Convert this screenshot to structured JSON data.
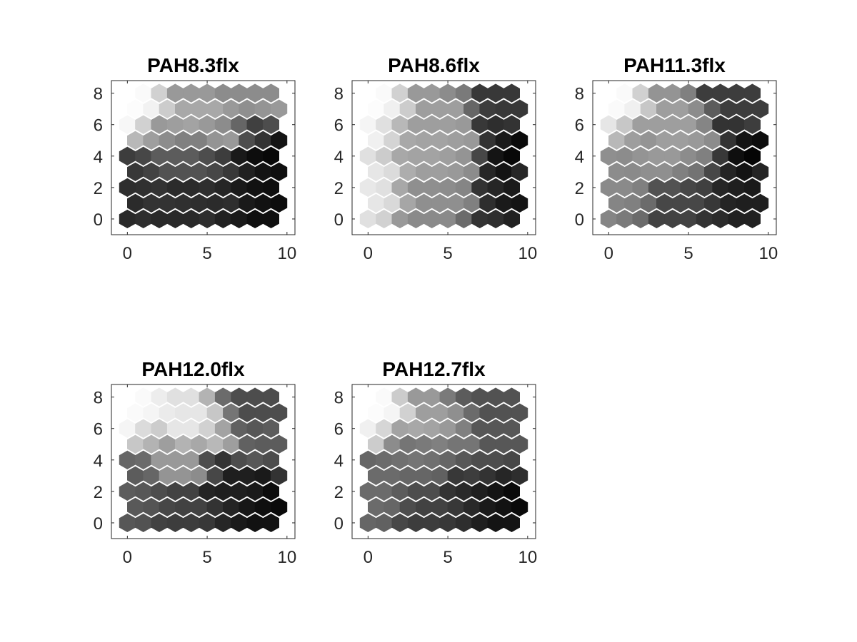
{
  "figure": {
    "background": "#ffffff",
    "axis_color": "#262626"
  },
  "chart_data": [
    {
      "type": "heatmap",
      "subtype": "hexagonal",
      "title": "PAH8.3flx",
      "xlim": [
        -1,
        10.5
      ],
      "ylim": [
        -1,
        8.8
      ],
      "xticks": [
        0,
        5,
        10
      ],
      "yticks": [
        0,
        2,
        4,
        6,
        8
      ],
      "grid": false,
      "x": [
        0,
        1,
        2,
        3,
        4,
        5,
        6,
        7,
        8,
        9
      ],
      "y": [
        0,
        1,
        2,
        3,
        4,
        5,
        6,
        7,
        8
      ],
      "colormap": "gray",
      "values": [
        [
          0.16,
          0.18,
          0.16,
          0.16,
          0.16,
          0.18,
          0.13,
          0.1,
          0.06,
          0.06
        ],
        [
          0.17,
          0.2,
          0.2,
          0.19,
          0.18,
          0.17,
          0.18,
          0.1,
          0.07,
          0.05
        ],
        [
          0.18,
          0.19,
          0.2,
          0.17,
          0.17,
          0.18,
          0.15,
          0.1,
          0.07,
          0.06
        ],
        [
          0.22,
          0.26,
          0.32,
          0.32,
          0.32,
          0.28,
          0.22,
          0.13,
          0.08,
          0.06
        ],
        [
          0.24,
          0.28,
          0.36,
          0.36,
          0.36,
          0.3,
          0.24,
          0.1,
          0.05,
          0.03
        ],
        [
          0.72,
          0.62,
          0.55,
          0.5,
          0.5,
          0.58,
          0.6,
          0.3,
          0.2,
          0.08
        ],
        [
          0.97,
          0.82,
          0.6,
          0.62,
          0.64,
          0.6,
          0.55,
          0.4,
          0.25,
          0.3
        ],
        [
          0.99,
          0.95,
          0.8,
          0.66,
          0.66,
          0.66,
          0.6,
          0.56,
          0.58,
          0.6
        ],
        [
          1.0,
          0.98,
          0.82,
          0.6,
          0.6,
          0.6,
          0.55,
          0.55,
          0.55,
          0.55
        ]
      ]
    },
    {
      "type": "heatmap",
      "subtype": "hexagonal",
      "title": "PAH8.6flx",
      "xlim": [
        -1,
        10.5
      ],
      "ylim": [
        -1,
        8.8
      ],
      "xticks": [
        0,
        5,
        10
      ],
      "yticks": [
        0,
        2,
        4,
        6,
        8
      ],
      "grid": false,
      "x": [
        0,
        1,
        2,
        3,
        4,
        5,
        6,
        7,
        8,
        9
      ],
      "y": [
        0,
        1,
        2,
        3,
        4,
        5,
        6,
        7,
        8
      ],
      "colormap": "gray",
      "values": [
        [
          0.88,
          0.82,
          0.6,
          0.54,
          0.54,
          0.54,
          0.42,
          0.2,
          0.18,
          0.13
        ],
        [
          0.9,
          0.85,
          0.65,
          0.56,
          0.56,
          0.56,
          0.5,
          0.18,
          0.1,
          0.08
        ],
        [
          0.91,
          0.88,
          0.66,
          0.56,
          0.56,
          0.55,
          0.52,
          0.2,
          0.15,
          0.1
        ],
        [
          0.9,
          0.86,
          0.68,
          0.62,
          0.62,
          0.6,
          0.55,
          0.15,
          0.08,
          0.15
        ],
        [
          0.88,
          0.8,
          0.66,
          0.64,
          0.64,
          0.62,
          0.58,
          0.28,
          0.08,
          0.03
        ],
        [
          0.94,
          0.83,
          0.66,
          0.64,
          0.64,
          0.62,
          0.6,
          0.2,
          0.1,
          0.04
        ],
        [
          0.96,
          0.88,
          0.72,
          0.62,
          0.62,
          0.62,
          0.6,
          0.22,
          0.18,
          0.2
        ],
        [
          0.99,
          0.94,
          0.8,
          0.62,
          0.62,
          0.62,
          0.4,
          0.24,
          0.22,
          0.22
        ],
        [
          1.0,
          0.98,
          0.82,
          0.6,
          0.6,
          0.55,
          0.48,
          0.22,
          0.22,
          0.22
        ]
      ]
    },
    {
      "type": "heatmap",
      "subtype": "hexagonal",
      "title": "PAH11.3flx",
      "xlim": [
        -1,
        10.5
      ],
      "ylim": [
        -1,
        8.8
      ],
      "xticks": [
        0,
        5,
        10
      ],
      "yticks": [
        0,
        2,
        4,
        6,
        8
      ],
      "grid": false,
      "x": [
        0,
        1,
        2,
        3,
        4,
        5,
        6,
        7,
        8,
        9
      ],
      "y": [
        0,
        1,
        2,
        3,
        4,
        5,
        6,
        7,
        8
      ],
      "colormap": "gray",
      "values": [
        [
          0.52,
          0.48,
          0.42,
          0.26,
          0.26,
          0.26,
          0.2,
          0.17,
          0.13,
          0.13
        ],
        [
          0.52,
          0.5,
          0.42,
          0.28,
          0.28,
          0.28,
          0.22,
          0.14,
          0.12,
          0.12
        ],
        [
          0.54,
          0.54,
          0.5,
          0.32,
          0.32,
          0.28,
          0.25,
          0.15,
          0.12,
          0.1
        ],
        [
          0.55,
          0.54,
          0.56,
          0.56,
          0.5,
          0.45,
          0.28,
          0.14,
          0.08,
          0.14
        ],
        [
          0.56,
          0.55,
          0.58,
          0.6,
          0.6,
          0.55,
          0.5,
          0.22,
          0.06,
          0.02
        ],
        [
          0.72,
          0.62,
          0.58,
          0.62,
          0.62,
          0.6,
          0.55,
          0.2,
          0.08,
          0.05
        ],
        [
          0.9,
          0.78,
          0.62,
          0.62,
          0.62,
          0.62,
          0.52,
          0.2,
          0.2,
          0.24
        ],
        [
          0.98,
          0.94,
          0.78,
          0.62,
          0.62,
          0.55,
          0.36,
          0.24,
          0.24,
          0.24
        ],
        [
          1.0,
          0.98,
          0.82,
          0.58,
          0.58,
          0.5,
          0.24,
          0.24,
          0.24,
          0.24
        ]
      ]
    },
    {
      "type": "heatmap",
      "subtype": "hexagonal",
      "title": "PAH12.0flx",
      "xlim": [
        -1,
        10.5
      ],
      "ylim": [
        -1,
        8.8
      ],
      "xticks": [
        0,
        5,
        10
      ],
      "yticks": [
        0,
        2,
        4,
        6,
        8
      ],
      "grid": false,
      "x": [
        0,
        1,
        2,
        3,
        4,
        5,
        6,
        7,
        8,
        9
      ],
      "y": [
        0,
        1,
        2,
        3,
        4,
        5,
        6,
        7,
        8
      ],
      "colormap": "gray",
      "values": [
        [
          0.34,
          0.32,
          0.26,
          0.24,
          0.24,
          0.22,
          0.15,
          0.1,
          0.07,
          0.07
        ],
        [
          0.35,
          0.33,
          0.28,
          0.26,
          0.26,
          0.2,
          0.14,
          0.09,
          0.06,
          0.04
        ],
        [
          0.36,
          0.34,
          0.3,
          0.26,
          0.26,
          0.14,
          0.12,
          0.12,
          0.1,
          0.05
        ],
        [
          0.36,
          0.4,
          0.58,
          0.58,
          0.55,
          0.28,
          0.12,
          0.12,
          0.1,
          0.2
        ],
        [
          0.4,
          0.42,
          0.6,
          0.6,
          0.6,
          0.3,
          0.2,
          0.3,
          0.34,
          0.3
        ],
        [
          0.78,
          0.7,
          0.62,
          0.7,
          0.66,
          0.72,
          0.62,
          0.38,
          0.36,
          0.36
        ],
        [
          0.96,
          0.86,
          0.8,
          0.9,
          0.9,
          0.82,
          0.64,
          0.38,
          0.34,
          0.36
        ],
        [
          0.98,
          0.96,
          0.92,
          0.9,
          0.9,
          0.78,
          0.46,
          0.3,
          0.3,
          0.3
        ],
        [
          1.0,
          0.98,
          0.93,
          0.88,
          0.88,
          0.7,
          0.42,
          0.3,
          0.3,
          0.3
        ]
      ]
    },
    {
      "type": "heatmap",
      "subtype": "hexagonal",
      "title": "PAH12.7flx",
      "xlim": [
        -1,
        10.5
      ],
      "ylim": [
        -1,
        8.8
      ],
      "xticks": [
        0,
        5,
        10
      ],
      "yticks": [
        0,
        2,
        4,
        6,
        8
      ],
      "grid": false,
      "x": [
        0,
        1,
        2,
        3,
        4,
        5,
        6,
        7,
        8,
        9
      ],
      "y": [
        0,
        1,
        2,
        3,
        4,
        5,
        6,
        7,
        8
      ],
      "colormap": "gray",
      "values": [
        [
          0.4,
          0.38,
          0.28,
          0.24,
          0.24,
          0.22,
          0.18,
          0.12,
          0.08,
          0.08
        ],
        [
          0.42,
          0.4,
          0.3,
          0.26,
          0.26,
          0.22,
          0.16,
          0.1,
          0.07,
          0.04
        ],
        [
          0.42,
          0.42,
          0.36,
          0.3,
          0.3,
          0.2,
          0.16,
          0.12,
          0.08,
          0.04
        ],
        [
          0.42,
          0.42,
          0.4,
          0.4,
          0.38,
          0.22,
          0.24,
          0.2,
          0.15,
          0.18
        ],
        [
          0.4,
          0.42,
          0.44,
          0.46,
          0.44,
          0.4,
          0.34,
          0.3,
          0.3,
          0.28
        ],
        [
          0.8,
          0.55,
          0.46,
          0.48,
          0.5,
          0.46,
          0.46,
          0.34,
          0.34,
          0.34
        ],
        [
          0.94,
          0.84,
          0.64,
          0.66,
          0.64,
          0.6,
          0.5,
          0.34,
          0.34,
          0.34
        ],
        [
          0.99,
          0.96,
          0.82,
          0.62,
          0.62,
          0.56,
          0.42,
          0.32,
          0.32,
          0.32
        ],
        [
          1.0,
          0.98,
          0.8,
          0.6,
          0.6,
          0.48,
          0.36,
          0.32,
          0.32,
          0.32
        ]
      ]
    }
  ]
}
